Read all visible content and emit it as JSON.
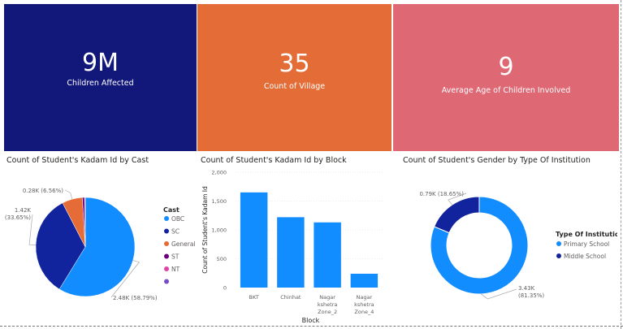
{
  "cards": [
    {
      "value": "9M",
      "label": "Children Affected",
      "color": "#12177a"
    },
    {
      "value": "35",
      "label": "Count of Village",
      "color": "#e46c37"
    },
    {
      "value": "9",
      "label": "Average Age of Children Involved",
      "color": "#df6875"
    }
  ],
  "chart_data": [
    {
      "type": "pie",
      "title": "Count of Student's Kadam Id by Cast",
      "legend_title": "Cast",
      "legend_position": "right",
      "slices": [
        {
          "name": "OBC",
          "value": 2.48,
          "label": "2.48K (58.79%)",
          "color": "#118dff"
        },
        {
          "name": "SC",
          "value": 1.42,
          "label": "1.42K (33.65%)",
          "color": "#12239e"
        },
        {
          "name": "General",
          "value": 0.28,
          "label": "0.28K (6.56%)",
          "color": "#e66c37"
        },
        {
          "name": "ST",
          "value": 0.03,
          "label": "",
          "color": "#6b007b"
        },
        {
          "name": "NT",
          "value": 0.01,
          "label": "",
          "color": "#e044a7"
        },
        {
          "name": "",
          "value": 0.0,
          "label": "",
          "color": "#744ec2"
        }
      ]
    },
    {
      "type": "bar",
      "title": "Count of Student's Kadam Id by Block",
      "xlabel": "Block",
      "ylabel": "Count of Student's Kadam Id",
      "ylim": [
        0,
        2000
      ],
      "yticks": [
        "0",
        "500",
        "1,000",
        "1,500",
        "2,000"
      ],
      "ytick_values": [
        0,
        500,
        1000,
        1500,
        2000
      ],
      "categories": [
        [
          "BKT"
        ],
        [
          "Chinhat"
        ],
        [
          "Nagar",
          "kshetra",
          "Zone_2"
        ],
        [
          "Nagar",
          "kshetra",
          "Zone_4"
        ]
      ],
      "values": [
        1650,
        1220,
        1130,
        240
      ],
      "color": "#118dff",
      "grid": true
    },
    {
      "type": "pie",
      "donut": true,
      "title": "Count of Student's Gender by Type Of Institution",
      "legend_title": "Type Of Institution",
      "legend_position": "right",
      "slices": [
        {
          "name": "Primary School",
          "value": 3.43,
          "label_lines": [
            "3.43K",
            "(81.35%)"
          ],
          "color": "#118dff"
        },
        {
          "name": "Middle School",
          "value": 0.79,
          "label_lines": [
            "0.79K (18.65%)"
          ],
          "color": "#12239e"
        }
      ]
    }
  ]
}
